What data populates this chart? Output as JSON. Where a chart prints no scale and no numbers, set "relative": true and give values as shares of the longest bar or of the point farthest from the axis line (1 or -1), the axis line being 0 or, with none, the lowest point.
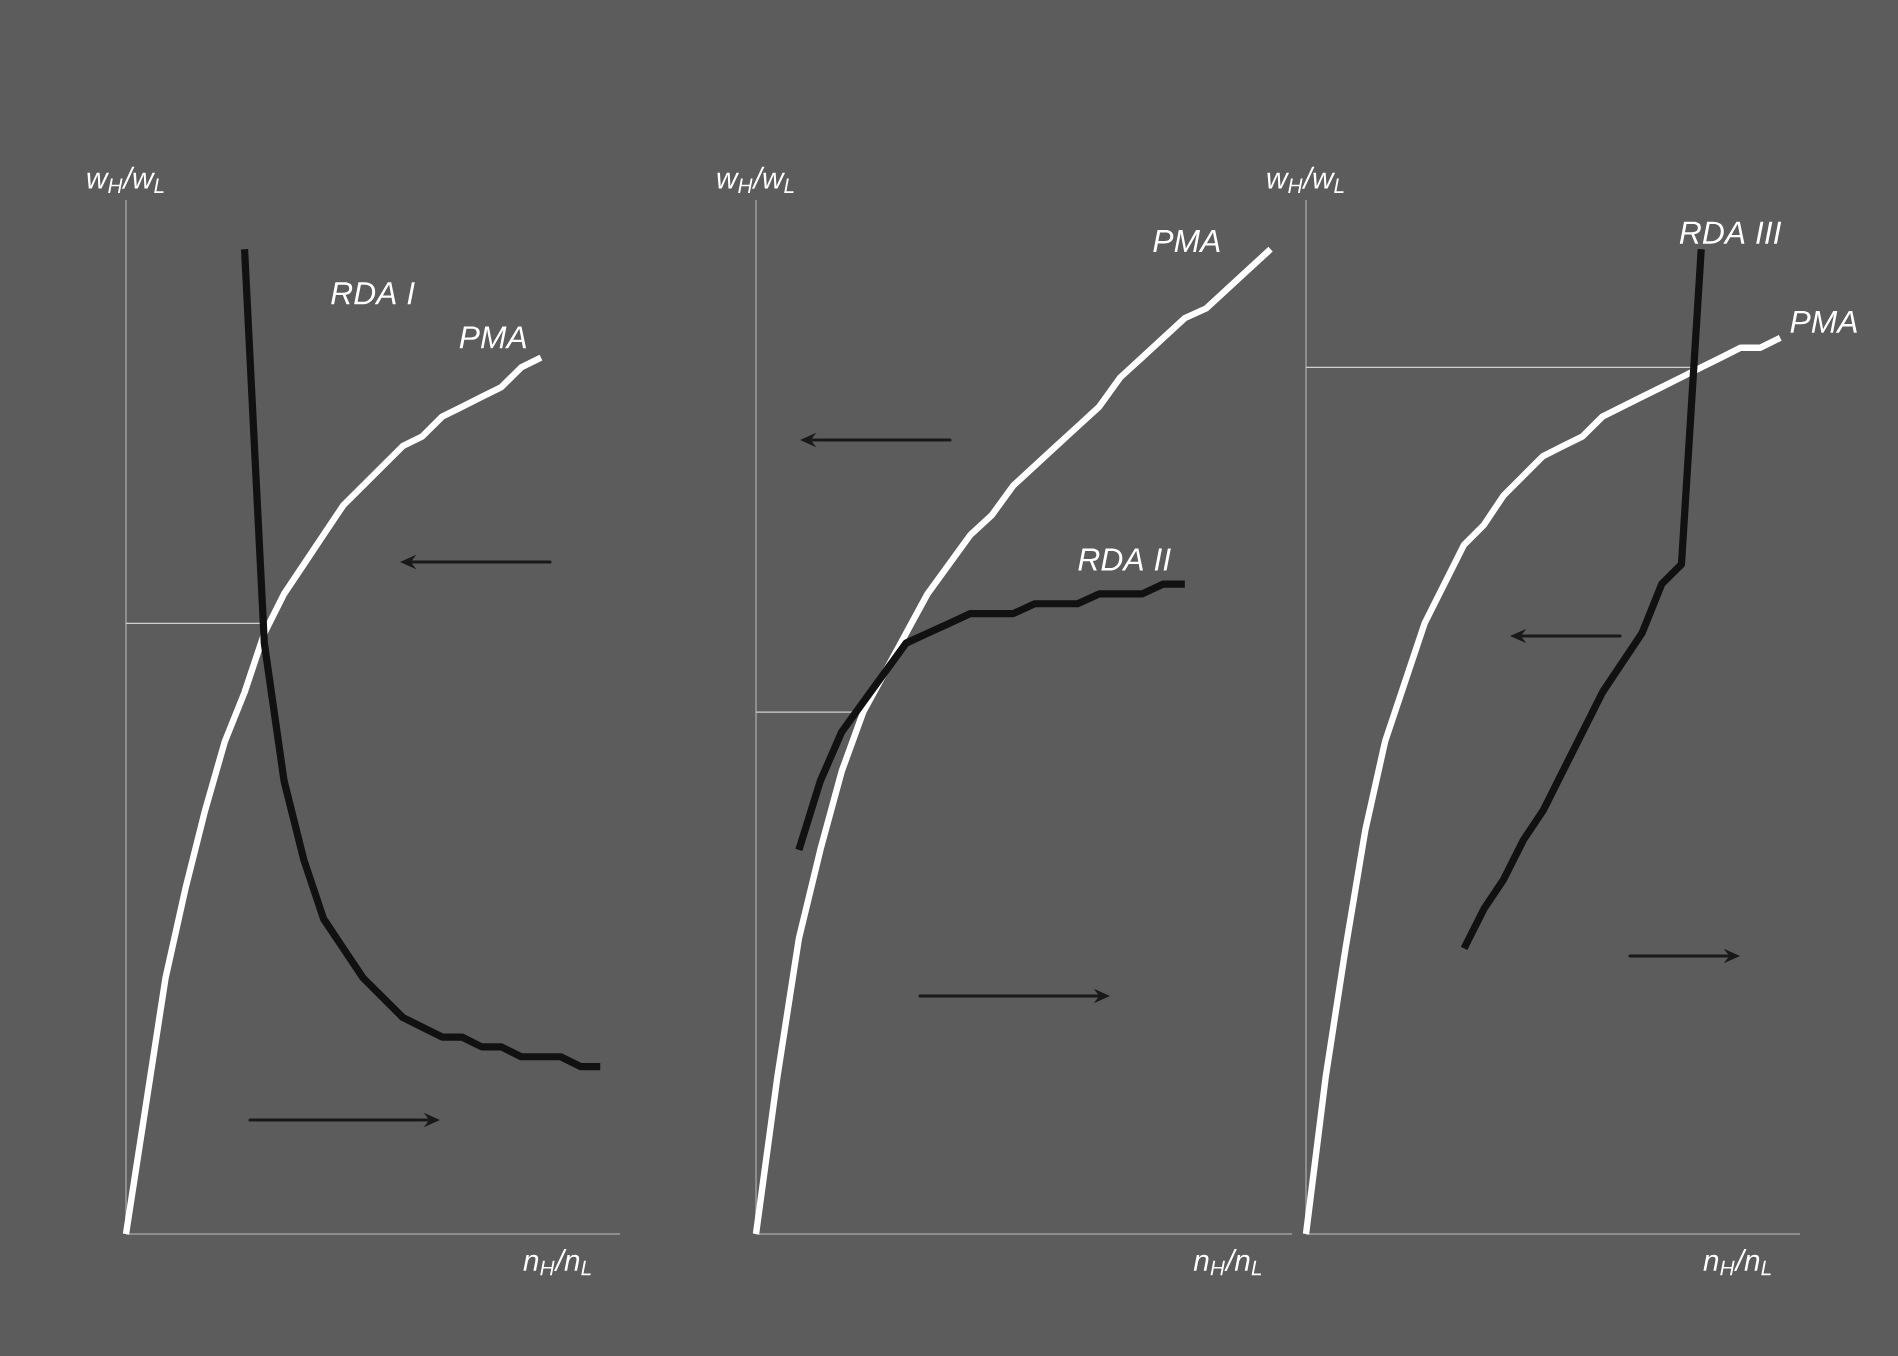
{
  "chart_data": [
    {
      "type": "line",
      "relative": true,
      "xlabel": "n$_{H}$/n$_{L}$",
      "ylabel": "w$_{H}$/w$_{L}$",
      "categories": [
        null,
        null,
        null,
        null,
        null,
        null,
        null,
        null,
        null,
        null,
        null,
        null,
        null,
        null,
        null,
        null,
        null,
        null,
        null,
        null,
        null,
        null,
        null,
        null,
        null
      ],
      "series": [
        {
          "name": "PMA",
          "color": "#ffffff",
          "values": [
            0,
            0.13,
            0.26,
            0.35,
            0.43,
            0.5,
            0.55,
            0.61,
            0.65,
            0.68,
            0.71,
            0.74,
            0.76,
            0.78,
            0.8,
            0.81,
            0.83,
            0.84,
            0.85,
            0.86,
            0.88,
            0.89,
            null,
            null,
            null
          ]
        },
        {
          "name": "RDA I",
          "color": "#111111",
          "values": [
            null,
            null,
            null,
            null,
            null,
            null,
            1.0,
            0.6,
            0.46,
            0.38,
            0.32,
            0.29,
            0.26,
            0.24,
            0.22,
            0.21,
            0.2,
            0.2,
            0.19,
            0.19,
            0.18,
            0.18,
            0.18,
            0.17,
            0.17
          ]
        }
      ],
      "ref_lines": [
        {
          "axis": "y",
          "value": 0.62,
          "color": "#cfcfcf"
        }
      ]
    },
    {
      "type": "line",
      "relative": true,
      "xlabel": "n$_{H}$/n$_{L}$",
      "ylabel": "w$_{H}$/w$_{L}$",
      "categories": [
        null,
        null,
        null,
        null,
        null,
        null,
        null,
        null,
        null,
        null,
        null,
        null,
        null,
        null,
        null,
        null,
        null,
        null,
        null,
        null,
        null,
        null,
        null,
        null,
        null
      ],
      "series": [
        {
          "name": "PMA",
          "color": "#ffffff",
          "values": [
            0,
            0.16,
            0.3,
            0.39,
            0.47,
            0.53,
            0.57,
            0.61,
            0.65,
            0.68,
            0.71,
            0.73,
            0.76,
            0.78,
            0.8,
            0.82,
            0.84,
            0.87,
            0.89,
            0.91,
            0.93,
            0.94,
            0.96,
            0.98,
            1.0
          ]
        },
        {
          "name": "RDA II",
          "color": "#111111",
          "values": [
            null,
            null,
            0.39,
            0.46,
            0.51,
            0.54,
            0.57,
            0.6,
            0.61,
            0.62,
            0.63,
            0.63,
            0.63,
            0.64,
            0.64,
            0.64,
            0.65,
            0.65,
            0.65,
            0.66,
            0.66,
            null,
            null,
            null,
            null
          ]
        }
      ],
      "ref_lines": [
        {
          "axis": "y",
          "value": 0.53,
          "color": "#cfcfcf"
        }
      ]
    },
    {
      "type": "line",
      "relative": true,
      "xlabel": "n$_{H}$/n$_{L}$",
      "ylabel": "w$_{H}$/w$_{L}$",
      "categories": [
        null,
        null,
        null,
        null,
        null,
        null,
        null,
        null,
        null,
        null,
        null,
        null,
        null,
        null,
        null,
        null,
        null,
        null,
        null,
        null,
        null,
        null,
        null,
        null,
        null
      ],
      "series": [
        {
          "name": "PMA",
          "color": "#ffffff",
          "values": [
            0,
            0.16,
            0.29,
            0.41,
            0.5,
            0.56,
            0.62,
            0.66,
            0.7,
            0.72,
            0.75,
            0.77,
            0.79,
            0.8,
            0.81,
            0.83,
            0.84,
            0.85,
            0.86,
            0.87,
            0.88,
            0.89,
            0.9,
            0.9,
            0.91
          ]
        },
        {
          "name": "RDA III",
          "color": "#111111",
          "values": [
            null,
            null,
            null,
            null,
            null,
            null,
            null,
            null,
            0.29,
            0.33,
            0.36,
            0.4,
            0.43,
            0.47,
            0.51,
            0.55,
            0.58,
            0.61,
            0.66,
            0.68,
            1.0,
            null,
            null,
            null,
            null
          ]
        }
      ],
      "ref_lines": [
        {
          "axis": "y",
          "value": 0.88,
          "color": "#cfcfcf"
        }
      ]
    }
  ]
}
